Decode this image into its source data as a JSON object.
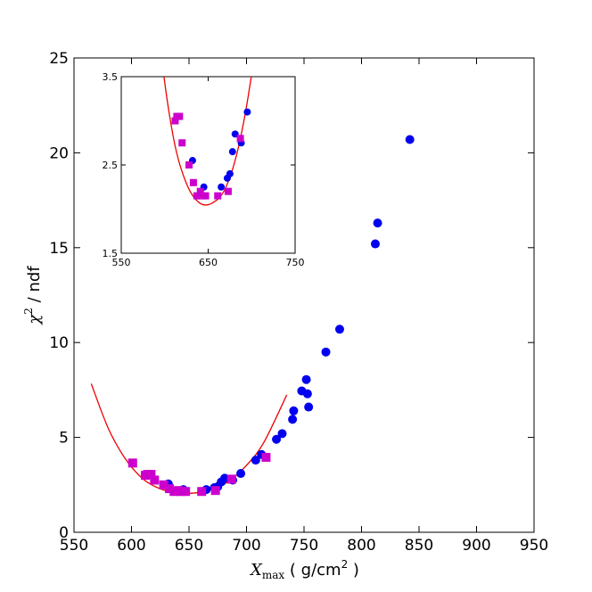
{
  "chart_data": {
    "type": "scatter",
    "xlabel": {
      "symbol": "X",
      "subscript": "max",
      "unit_prefix": " ( g/cm",
      "unit_superscript": "2",
      "unit_suffix": " )"
    },
    "ylabel": {
      "symbol": "χ",
      "superscript": "2",
      "suffix": " / ndf"
    },
    "xlim": [
      550,
      950
    ],
    "ylim": [
      0,
      25
    ],
    "xticks": [
      "550",
      "600",
      "650",
      "700",
      "750",
      "800",
      "850",
      "900",
      "950"
    ],
    "yticks": [
      "0",
      "5",
      "10",
      "15",
      "20",
      "25"
    ],
    "grid": false,
    "legend": "none",
    "colors": {
      "circles": "#0000ee",
      "squares": "#cc00cc",
      "fit": "#ee0000"
    },
    "series": [
      {
        "marker": "circle",
        "points": [
          [
            632,
            2.55
          ],
          [
            645,
            2.25
          ],
          [
            665,
            2.25
          ],
          [
            672,
            2.35
          ],
          [
            675,
            2.4
          ],
          [
            678,
            2.65
          ],
          [
            681,
            2.85
          ],
          [
            688,
            2.75
          ],
          [
            695,
            3.1
          ],
          [
            708,
            3.8
          ],
          [
            713,
            4.1
          ],
          [
            726,
            4.9
          ],
          [
            731,
            5.2
          ],
          [
            740,
            5.95
          ],
          [
            741,
            6.4
          ],
          [
            748,
            7.45
          ],
          [
            752,
            8.05
          ],
          [
            753,
            7.3
          ],
          [
            754,
            6.6
          ],
          [
            769,
            9.5
          ],
          [
            781,
            10.7
          ],
          [
            812,
            15.2
          ],
          [
            814,
            16.3
          ],
          [
            842,
            20.7
          ]
        ]
      },
      {
        "marker": "square",
        "points": [
          [
            601,
            3.65
          ],
          [
            612,
            3.0
          ],
          [
            614,
            3.05
          ],
          [
            617,
            3.05
          ],
          [
            620,
            2.75
          ],
          [
            628,
            2.5
          ],
          [
            633,
            2.3
          ],
          [
            637,
            2.15
          ],
          [
            641,
            2.2
          ],
          [
            643,
            2.15
          ],
          [
            647,
            2.15
          ],
          [
            661,
            2.15
          ],
          [
            673,
            2.2
          ],
          [
            687,
            2.8
          ],
          [
            717,
            3.95
          ]
        ]
      },
      {
        "type": "line",
        "marker": "none",
        "x": [
          565,
          580,
          595,
          610,
          625,
          640,
          655,
          670,
          685,
          700,
          715,
          735
        ],
        "y": [
          7.83,
          5.45,
          3.84,
          2.81,
          2.29,
          2.07,
          2.07,
          2.24,
          2.71,
          3.53,
          4.73,
          7.24
        ]
      }
    ],
    "inset": {
      "xlim": [
        550,
        750
      ],
      "ylim": [
        1.5,
        3.5
      ],
      "xticks": [
        "550",
        "650",
        "750"
      ],
      "yticks": [
        "1.5",
        "2.5",
        "3.5"
      ]
    }
  }
}
